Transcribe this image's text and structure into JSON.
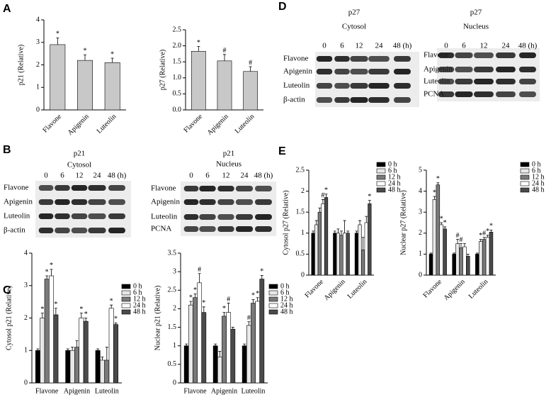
{
  "panels": [
    "A",
    "B",
    "C",
    "D",
    "E"
  ],
  "blots": [
    {
      "protein": "p21",
      "fraction": "Cytosol",
      "lanes": [
        "0",
        "6",
        "12",
        "24",
        "48 (h)"
      ],
      "rows": [
        "Flavone",
        "Apigenin",
        "Luteolin",
        "β-actin"
      ]
    },
    {
      "protein": "p21",
      "fraction": "Nucleus",
      "lanes": [
        "0",
        "6",
        "12",
        "24",
        "48 (h)"
      ],
      "rows": [
        "Flavone",
        "Apigenin",
        "Luteolin",
        "PCNA"
      ]
    },
    {
      "protein": "p27",
      "fraction": "Cytosol",
      "lanes": [
        "0",
        "6",
        "12",
        "24",
        "48 (h)"
      ],
      "rows": [
        "Flavone",
        "Apigenin",
        "Luteolin",
        "β-actin"
      ]
    },
    {
      "protein": "p27",
      "fraction": "Nucleus",
      "lanes": [
        "0",
        "6",
        "12",
        "24",
        "48 (h)"
      ],
      "rows": [
        "Flavone",
        "Apigenin",
        "Luteolin",
        "PCNA"
      ]
    }
  ],
  "chart_data": [
    {
      "type": "bar",
      "y_label": "p21 (Relative)",
      "categories": [
        "Flavone",
        "Apigenin",
        "Luteolin"
      ],
      "values": [
        2.9,
        2.2,
        2.1
      ],
      "errors": [
        0.3,
        0.25,
        0.2
      ],
      "markers": [
        "*",
        "*",
        "*"
      ],
      "color": "#c8c8c8",
      "ylim": [
        0,
        4
      ],
      "yticks": [
        0,
        1,
        2,
        3,
        4
      ]
    },
    {
      "type": "bar",
      "y_label": "p27 (Relative)",
      "categories": [
        "Flavone",
        "Apigenin",
        "Luteolin"
      ],
      "values": [
        1.83,
        1.53,
        1.2
      ],
      "errors": [
        0.15,
        0.2,
        0.15
      ],
      "markers": [
        "*",
        "#",
        "#"
      ],
      "color": "#c8c8c8",
      "ylim": [
        0,
        2.5
      ],
      "yticks": [
        {
          "value": 0,
          "label": "0.0"
        },
        0.5,
        {
          "value": 1,
          "label": "1.0"
        },
        1.5,
        {
          "value": 2,
          "label": "2.0"
        },
        2.5
      ]
    },
    {
      "type": "bar",
      "y_label": "Cytosol p21 (Relative)",
      "categories": [
        "Flavone",
        "Apigenin",
        "Luteolin"
      ],
      "series": [
        {
          "name": "0 h",
          "color": "#000000",
          "values": [
            1.0,
            1.0,
            1.0
          ],
          "errors": [
            0.05,
            0.05,
            0.05
          ],
          "markers": [
            null,
            null,
            null
          ]
        },
        {
          "name": "6 h",
          "color": "#e8e8e8",
          "values": [
            2.0,
            1.0,
            0.7
          ],
          "errors": [
            0.15,
            0.1,
            0.1
          ],
          "markers": [
            "*",
            null,
            null
          ]
        },
        {
          "name": "12 h",
          "color": "#7a7a7a",
          "values": [
            3.2,
            1.1,
            0.7
          ],
          "errors": [
            0.1,
            0.2,
            0.4
          ],
          "markers": [
            "*",
            null,
            null
          ]
        },
        {
          "name": "24 h",
          "color": "#ffffff",
          "values": [
            3.3,
            2.0,
            2.3
          ],
          "errors": [
            0.2,
            0.15,
            0.1
          ],
          "markers": [
            "*",
            "*",
            "*"
          ]
        },
        {
          "name": "48 h",
          "color": "#4a4a4a",
          "values": [
            2.1,
            1.9,
            1.8
          ],
          "errors": [
            0.2,
            0.1,
            0.05
          ],
          "markers": [
            "*",
            "*",
            "*"
          ]
        }
      ],
      "ylim": [
        0,
        4
      ],
      "yticks": [
        0,
        1,
        2,
        3,
        4
      ]
    },
    {
      "type": "bar",
      "y_label": "Nuclear p21 (Relative)",
      "categories": [
        "Flavone",
        "Apigenin",
        "Luteolin"
      ],
      "series": [
        {
          "name": "0 h",
          "color": "#000000",
          "values": [
            1.0,
            1.0,
            1.0
          ],
          "errors": [
            0.05,
            0.05,
            0.05
          ],
          "markers": [
            null,
            null,
            null
          ]
        },
        {
          "name": "6 h",
          "color": "#e8e8e8",
          "values": [
            2.1,
            0.7,
            1.55
          ],
          "errors": [
            0.1,
            0.15,
            0.1
          ],
          "markers": [
            "*",
            null,
            "#"
          ]
        },
        {
          "name": "12 h",
          "color": "#7a7a7a",
          "values": [
            2.3,
            1.8,
            2.15
          ],
          "errors": [
            0.1,
            0.1,
            0.1
          ],
          "markers": [
            "*",
            "*",
            "*"
          ]
        },
        {
          "name": "24 h",
          "color": "#ffffff",
          "values": [
            2.7,
            1.9,
            2.2
          ],
          "errors": [
            0.25,
            0.25,
            0.1
          ],
          "markers": [
            "#",
            "#",
            "*"
          ]
        },
        {
          "name": "48 h",
          "color": "#4a4a4a",
          "values": [
            1.9,
            1.45,
            2.8
          ],
          "errors": [
            0.15,
            0.05,
            0.1
          ],
          "markers": [
            "*",
            null,
            "*"
          ]
        }
      ],
      "ylim": [
        0,
        3.5
      ],
      "yticks": [
        0,
        0.5,
        1,
        1.5,
        2,
        2.5,
        3,
        3.5
      ]
    },
    {
      "type": "bar",
      "y_label": "Cytosol p27 (Relative)",
      "categories": [
        "Flavone",
        "Apigenin",
        "Luteolin"
      ],
      "series": [
        {
          "name": "0 h",
          "color": "#000000",
          "values": [
            1.0,
            1.0,
            1.0
          ],
          "errors": [
            0.05,
            0.05,
            0.05
          ],
          "markers": [
            null,
            null,
            null
          ]
        },
        {
          "name": "6 h",
          "color": "#e8e8e8",
          "values": [
            1.2,
            1.0,
            1.2
          ],
          "errors": [
            0.1,
            0.1,
            0.1
          ],
          "markers": [
            null,
            null,
            null
          ]
        },
        {
          "name": "12 h",
          "color": "#7a7a7a",
          "values": [
            1.5,
            0.95,
            0.6
          ],
          "errors": [
            0.1,
            0.1,
            0.3
          ],
          "markers": [
            null,
            null,
            null
          ]
        },
        {
          "name": "24 h",
          "color": "#ffffff",
          "values": [
            1.7,
            1.0,
            1.25
          ],
          "errors": [
            0.1,
            0.3,
            0.15
          ],
          "markers": [
            "#",
            null,
            null
          ]
        },
        {
          "name": "48 h",
          "color": "#4a4a4a",
          "values": [
            1.85,
            1.0,
            1.7
          ],
          "errors": [
            0.08,
            0.05,
            0.08
          ],
          "markers": [
            "*",
            null,
            "*"
          ]
        }
      ],
      "ylim": [
        0,
        2.5
      ],
      "yticks": [
        0,
        0.5,
        1,
        1.5,
        2,
        2.5
      ]
    },
    {
      "type": "bar",
      "y_label": "Nuclear p27 (Relative)",
      "categories": [
        "Flavone",
        "Apigenin",
        "Luteolin"
      ],
      "series": [
        {
          "name": "0 h",
          "color": "#000000",
          "values": [
            1.0,
            1.0,
            1.0
          ],
          "errors": [
            0.05,
            0.05,
            0.05
          ],
          "markers": [
            null,
            null,
            null
          ]
        },
        {
          "name": "6 h",
          "color": "#e8e8e8",
          "values": [
            3.6,
            1.5,
            1.6
          ],
          "errors": [
            0.15,
            0.2,
            0.1
          ],
          "markers": [
            "*",
            "#",
            "*"
          ]
        },
        {
          "name": "12 h",
          "color": "#7a7a7a",
          "values": [
            4.3,
            1.3,
            1.7
          ],
          "errors": [
            0.1,
            0.2,
            0.1
          ],
          "markers": [
            "*",
            "#",
            "#"
          ]
        },
        {
          "name": "24 h",
          "color": "#ffffff",
          "values": [
            2.4,
            1.35,
            1.8
          ],
          "errors": [
            0.1,
            0.15,
            0.1
          ],
          "markers": [
            "*",
            null,
            "*"
          ]
        },
        {
          "name": "48 h",
          "color": "#4a4a4a",
          "values": [
            2.2,
            0.9,
            2.05
          ],
          "errors": [
            0.1,
            0.1,
            0.1
          ],
          "markers": [
            "*",
            null,
            "*"
          ]
        }
      ],
      "ylim": [
        0,
        5
      ],
      "yticks": [
        0,
        1,
        2,
        3,
        4,
        5
      ]
    }
  ]
}
